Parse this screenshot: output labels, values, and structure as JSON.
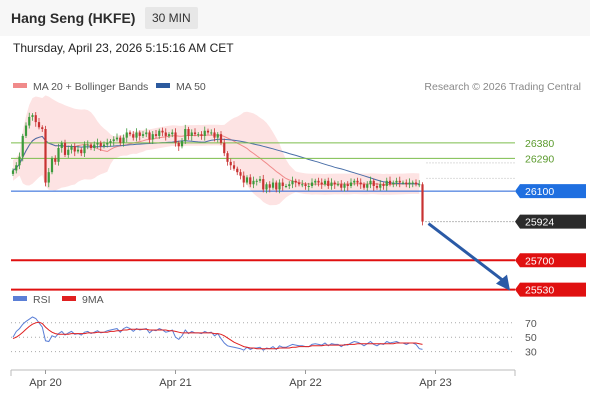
{
  "header": {
    "title": "Hang Seng (HKFE)",
    "timeframe": "30 MIN",
    "datetime": "Thursday, April 23, 2026 5:15:16 AM CET"
  },
  "legend": {
    "items": [
      {
        "label": "MA 20 + Bollinger Bands",
        "color": "#f08a8a"
      },
      {
        "label": "MA 50",
        "color": "#2c5a9e"
      }
    ],
    "credit": "Research © 2026 Trading Central"
  },
  "rsi_legend": {
    "items": [
      {
        "label": "RSI",
        "color": "#5b7fd6"
      },
      {
        "label": "9MA",
        "color": "#e02020"
      }
    ]
  },
  "chart_data": {
    "type": "candlestick",
    "x_ticks": [
      "Apr 20",
      "Apr 21",
      "Apr 22",
      "Apr 23"
    ],
    "x_tick_index": [
      10,
      50,
      90,
      130
    ],
    "y_range": [
      25470,
      26570
    ],
    "levels": [
      {
        "value": 26380,
        "label": "26380",
        "color": "#7cbd4c",
        "style": "thin"
      },
      {
        "value": 26290,
        "label": "26290",
        "color": "#7cbd4c",
        "style": "thin"
      },
      {
        "value": 26100,
        "label": "26100",
        "color": "#1f5fd8",
        "style": "thin-label-box"
      },
      {
        "value": 25924,
        "label": "25924",
        "color": "#2b2b2b",
        "style": "current"
      },
      {
        "value": 25700,
        "label": "25700",
        "color": "#e01010",
        "style": "thick"
      },
      {
        "value": 25530,
        "label": "25530",
        "color": "#e01010",
        "style": "thick"
      }
    ],
    "close_series": [
      26220,
      26250,
      26300,
      26420,
      26480,
      26530,
      26540,
      26500,
      26470,
      26460,
      26150,
      26210,
      26290,
      26270,
      26350,
      26380,
      26310,
      26340,
      26360,
      26330,
      26340,
      26320,
      26370,
      26370,
      26350,
      26370,
      26380,
      26360,
      26370,
      26380,
      26390,
      26400,
      26410,
      26380,
      26410,
      26440,
      26430,
      26410,
      26440,
      26420,
      26430,
      26440,
      26400,
      26430,
      26420,
      26450,
      26440,
      26420,
      26430,
      26440,
      26380,
      26360,
      26390,
      26460,
      26420,
      26440,
      26430,
      26430,
      26420,
      26450,
      26440,
      26440,
      26410,
      26430,
      26380,
      26320,
      26270,
      26250,
      26230,
      26210,
      26190,
      26150,
      26180,
      26140,
      26160,
      26160,
      26170,
      26110,
      26140,
      26120,
      26150,
      26110,
      26150,
      26130,
      26130,
      26140,
      26160,
      26150,
      26140,
      26140,
      26130,
      26130,
      26150,
      26160,
      26150,
      26140,
      26160,
      26130,
      26150,
      26140,
      26140,
      26120,
      26140,
      26130,
      26150,
      26160,
      26150,
      26140,
      26120,
      26140,
      26160,
      26130,
      26120,
      26140,
      26130,
      26160,
      26140,
      26150,
      26160,
      26150,
      26150,
      26140,
      26150,
      26150,
      26140,
      26140,
      25924
    ],
    "projection": {
      "from": 25924,
      "to": 25530
    },
    "rsi": {
      "ticks": [
        70,
        50,
        30
      ],
      "y_range": [
        10,
        85
      ],
      "rsi_series": [
        50,
        58,
        62,
        68,
        72,
        75,
        78,
        76,
        70,
        64,
        45,
        44,
        52,
        50,
        55,
        58,
        53,
        56,
        58,
        54,
        55,
        53,
        57,
        58,
        55,
        57,
        59,
        56,
        57,
        59,
        60,
        61,
        62,
        57,
        62,
        64,
        62,
        58,
        62,
        60,
        61,
        62,
        56,
        60,
        59,
        62,
        60,
        57,
        58,
        60,
        50,
        47,
        52,
        60,
        55,
        58,
        56,
        56,
        55,
        58,
        56,
        57,
        52,
        55,
        48,
        42,
        38,
        37,
        36,
        35,
        34,
        32,
        36,
        33,
        35,
        35,
        36,
        32,
        35,
        34,
        37,
        33,
        38,
        36,
        36,
        38,
        40,
        39,
        38,
        38,
        37,
        37,
        40,
        41,
        40,
        39,
        42,
        38,
        41,
        40,
        40,
        37,
        40,
        39,
        42,
        44,
        43,
        41,
        38,
        41,
        44,
        40,
        38,
        41,
        40,
        44,
        42,
        43,
        44,
        42,
        42,
        40,
        42,
        42,
        40,
        34,
        33
      ],
      "ma_series": [
        48,
        50,
        53,
        57,
        61,
        65,
        68,
        70,
        71,
        69,
        64,
        60,
        57,
        55,
        54,
        54,
        54,
        54,
        55,
        55,
        55,
        55,
        55,
        56,
        56,
        56,
        57,
        57,
        57,
        57,
        58,
        58,
        59,
        59,
        60,
        60,
        61,
        61,
        61,
        61,
        61,
        61,
        60,
        60,
        60,
        60,
        60,
        60,
        59,
        59,
        58,
        57,
        56,
        56,
        56,
        56,
        56,
        56,
        56,
        56,
        56,
        56,
        55,
        55,
        54,
        52,
        49,
        46,
        43,
        41,
        39,
        37,
        36,
        35,
        35,
        34,
        34,
        34,
        34,
        34,
        34,
        34,
        35,
        35,
        35,
        35,
        36,
        36,
        37,
        37,
        37,
        37,
        38,
        38,
        38,
        38,
        39,
        39,
        39,
        39,
        39,
        39,
        39,
        40,
        40,
        40,
        41,
        41,
        41,
        41,
        41,
        41,
        41,
        41,
        41,
        41,
        41,
        41,
        42,
        42,
        42,
        42,
        42,
        42,
        42,
        41,
        40
      ]
    }
  }
}
